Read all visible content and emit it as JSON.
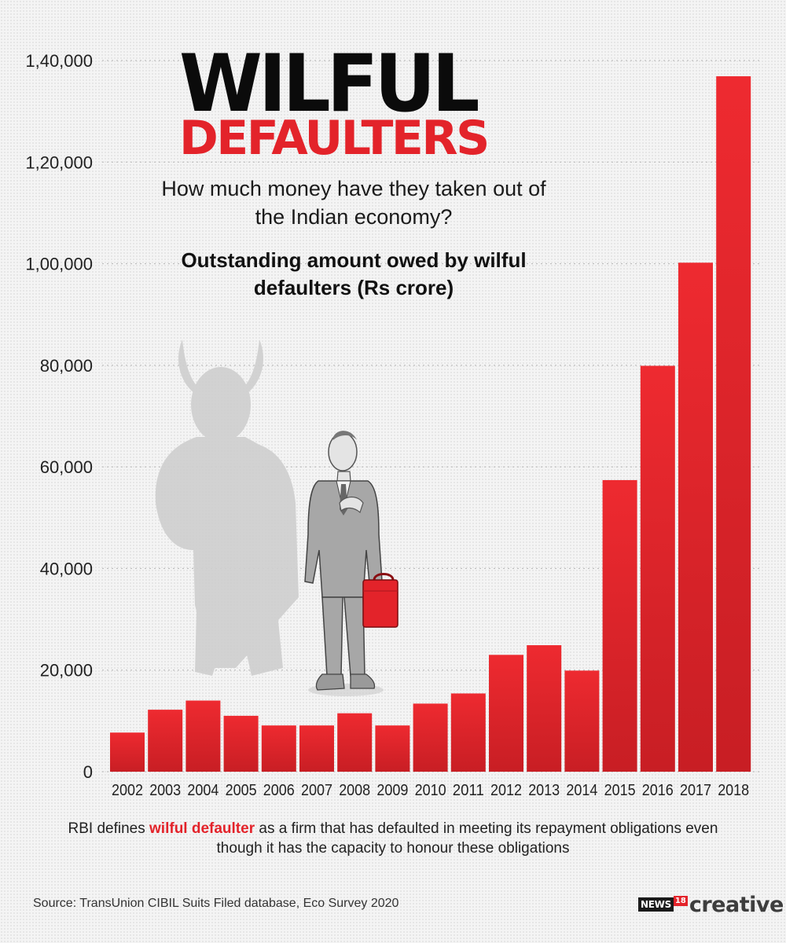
{
  "title": {
    "line1": "WILFUL",
    "line2": "DEFAULTERS"
  },
  "subtitle": "How much money have they taken out of the Indian economy?",
  "chart_heading": "Outstanding amount owed by wilful defaulters (Rs crore)",
  "footnote": {
    "before": "RBI defines ",
    "highlight": "wilful defaulter",
    "after": " as a firm that has defaulted in meeting its repayment obligations even though it has the capacity to honour these obligations"
  },
  "source": "Source: TransUnion CIBIL Suits Filed database, Eco Survey 2020",
  "logo": {
    "news": "NEWS",
    "number": "18",
    "creative": "creative"
  },
  "colors": {
    "bar": "#e3232a",
    "title_red": "#e3232a",
    "title_black": "#0b0b0b"
  },
  "chart_data": {
    "type": "bar",
    "categories": [
      "2002",
      "2003",
      "2004",
      "2005",
      "2006",
      "2007",
      "2008",
      "2009",
      "2010",
      "2011",
      "2012",
      "2013",
      "2014",
      "2015",
      "2016",
      "2017",
      "2018"
    ],
    "values": [
      7700,
      12200,
      14000,
      11000,
      9100,
      9100,
      11500,
      9100,
      13400,
      15400,
      23000,
      24900,
      19900,
      57400,
      79900,
      100200,
      136900
    ],
    "y_ticks": [
      0,
      20000,
      40000,
      60000,
      80000,
      100000,
      120000,
      140000
    ],
    "y_tick_labels": [
      "0",
      "20,000",
      "40,000",
      "60,000",
      "80,000",
      "1,00,000",
      "1,20,000",
      "1,40,000"
    ],
    "ylim": [
      0,
      140000
    ],
    "grid": "dotted horizontal",
    "legend": "none",
    "title": "Outstanding amount owed by wilful defaulters (Rs crore)"
  }
}
